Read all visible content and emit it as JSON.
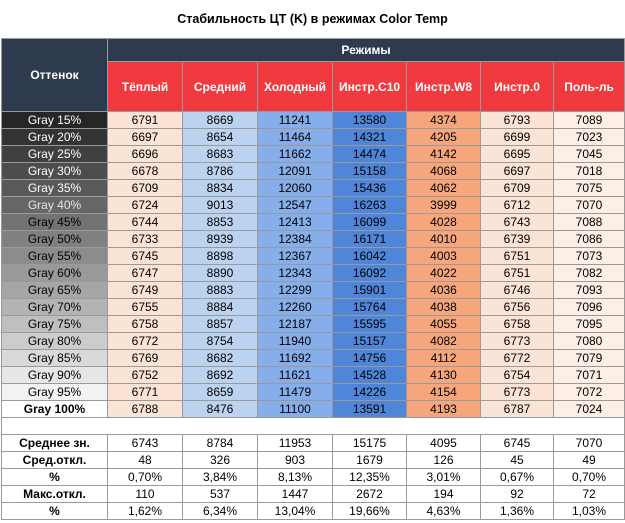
{
  "title": "Стабильность ЦТ (K) в режимах Color Temp",
  "header": {
    "shade_label": "Оттенок",
    "modes_label": "Режимы",
    "columns": [
      "Тёплый",
      "Средний",
      "Холодный",
      "Инстр.C10",
      "Инстр.W8",
      "Инстр.0",
      "Поль-ль"
    ]
  },
  "colors": {
    "header_dark": "#2e3a4d",
    "header_red": "#f13a3f",
    "col_warm": "#fbe4d6",
    "col_mid": "#bcd3f0",
    "col_cold": "#86aeea",
    "col_c10": "#4f86da",
    "col_w8": "#f6a67a",
    "col_0": "#fbe4d6",
    "col_user": "#fdeee6"
  },
  "chart_data": {
    "type": "table",
    "title": "Стабильность ЦТ (K) в режимах Color Temp",
    "columns": [
      "Тёплый",
      "Средний",
      "Холодный",
      "Инстр.C10",
      "Инстр.W8",
      "Инстр.0",
      "Поль-ль"
    ],
    "rows": [
      {
        "label": "Gray 15%",
        "values": [
          6791,
          8669,
          11241,
          13580,
          4374,
          6793,
          7089
        ]
      },
      {
        "label": "Gray 20%",
        "values": [
          6697,
          8654,
          11464,
          14321,
          4205,
          6699,
          7023
        ]
      },
      {
        "label": "Gray 25%",
        "values": [
          6696,
          8683,
          11662,
          14474,
          4142,
          6695,
          7045
        ]
      },
      {
        "label": "Gray 30%",
        "values": [
          6678,
          8786,
          12091,
          15158,
          4068,
          6697,
          7018
        ]
      },
      {
        "label": "Gray 35%",
        "values": [
          6709,
          8834,
          12060,
          15436,
          4062,
          6709,
          7075
        ]
      },
      {
        "label": "Gray 40%",
        "values": [
          6724,
          9013,
          12547,
          16263,
          3999,
          6712,
          7070
        ]
      },
      {
        "label": "Gray 45%",
        "values": [
          6744,
          8853,
          12413,
          16099,
          4028,
          6743,
          7088
        ]
      },
      {
        "label": "Gray 50%",
        "values": [
          6733,
          8939,
          12384,
          16171,
          4010,
          6739,
          7086
        ]
      },
      {
        "label": "Gray 55%",
        "values": [
          6745,
          8898,
          12367,
          16042,
          4003,
          6751,
          7073
        ]
      },
      {
        "label": "Gray 60%",
        "values": [
          6747,
          8890,
          12343,
          16092,
          4022,
          6751,
          7082
        ]
      },
      {
        "label": "Gray 65%",
        "values": [
          6749,
          8883,
          12299,
          15901,
          4036,
          6746,
          7093
        ]
      },
      {
        "label": "Gray 70%",
        "values": [
          6755,
          8884,
          12260,
          15764,
          4038,
          6756,
          7096
        ]
      },
      {
        "label": "Gray 75%",
        "values": [
          6758,
          8857,
          12187,
          15595,
          4055,
          6758,
          7095
        ]
      },
      {
        "label": "Gray 80%",
        "values": [
          6772,
          8754,
          11940,
          15157,
          4082,
          6773,
          7080
        ]
      },
      {
        "label": "Gray 85%",
        "values": [
          6769,
          8682,
          11692,
          14756,
          4112,
          6772,
          7079
        ]
      },
      {
        "label": "Gray 90%",
        "values": [
          6752,
          8692,
          11621,
          14528,
          4130,
          6754,
          7071
        ]
      },
      {
        "label": "Gray 95%",
        "values": [
          6771,
          8659,
          11479,
          14226,
          4154,
          6773,
          7072
        ]
      },
      {
        "label": "Gray 100%",
        "values": [
          6788,
          8476,
          11100,
          13591,
          4193,
          6787,
          7024
        ]
      }
    ],
    "row_fills": [
      "#262626",
      "#333333",
      "#404040",
      "#4d4d4d",
      "#595959",
      "#666666",
      "#737373",
      "#808080",
      "#8c8c8c",
      "#999999",
      "#a6a6a6",
      "#b3b3b3",
      "#bfbfbf",
      "#cccccc",
      "#d9d9d9",
      "#e6e6e6",
      "#f2f2f2",
      "#ffffff"
    ],
    "row_text": [
      "#ffffff",
      "#ffffff",
      "#ffffff",
      "#ffffff",
      "#ffffff",
      "#e6e6e6",
      "#000000",
      "#000000",
      "#000000",
      "#000000",
      "#000000",
      "#000000",
      "#000000",
      "#000000",
      "#000000",
      "#000000",
      "#000000",
      "#000000"
    ],
    "summary": [
      {
        "label": "Среднее зн.",
        "values": [
          "6743",
          "8784",
          "11953",
          "15175",
          "4095",
          "6745",
          "7070"
        ]
      },
      {
        "label": "Сред.откл.",
        "values": [
          "48",
          "326",
          "903",
          "1679",
          "126",
          "45",
          "49"
        ]
      },
      {
        "label": "%",
        "values": [
          "0,70%",
          "3,84%",
          "8,13%",
          "12,35%",
          "3,01%",
          "0,67%",
          "0,70%"
        ]
      },
      {
        "label": "Макс.откл.",
        "values": [
          "110",
          "537",
          "1447",
          "2672",
          "194",
          "92",
          "72"
        ]
      },
      {
        "label": "%",
        "values": [
          "1,62%",
          "6,34%",
          "13,04%",
          "19,66%",
          "4,63%",
          "1,36%",
          "1,03%"
        ]
      }
    ]
  }
}
